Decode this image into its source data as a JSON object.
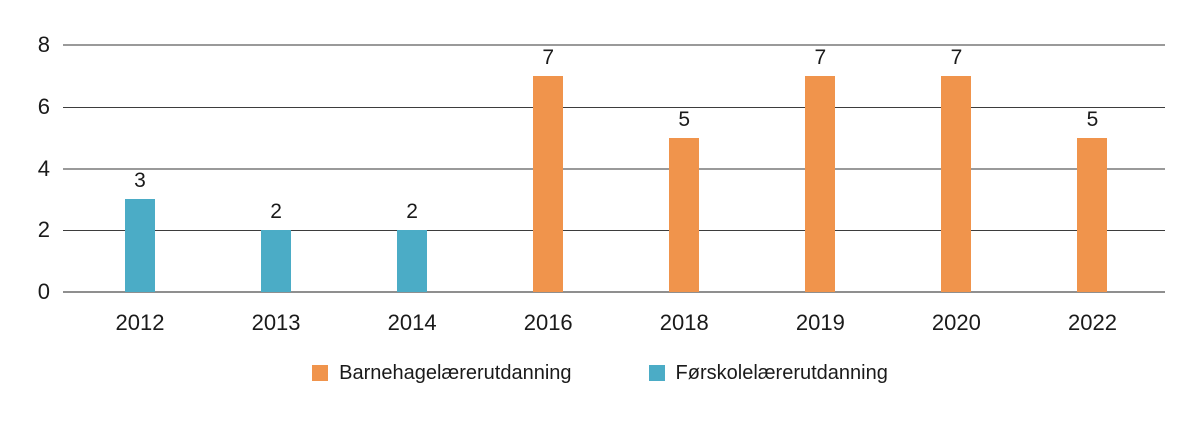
{
  "chart_data": {
    "type": "bar",
    "title": "",
    "xlabel": "",
    "ylabel": "",
    "categories": [
      "2012",
      "2013",
      "2014",
      "2016",
      "2018",
      "2019",
      "2020",
      "2022"
    ],
    "series": [
      {
        "name": "Barnehagelærerutdanning",
        "color": "#F0944C",
        "values": [
          null,
          null,
          null,
          7,
          5,
          7,
          7,
          5
        ]
      },
      {
        "name": "Førskolelærerutdanning",
        "color": "#4BACC6",
        "values": [
          3,
          2,
          2,
          null,
          null,
          null,
          null,
          null
        ]
      }
    ],
    "value_labels": [
      3,
      2,
      2,
      7,
      5,
      7,
      7,
      5
    ],
    "ylim": [
      0,
      8
    ],
    "yticks": [
      0,
      2,
      4,
      6,
      8
    ],
    "grid": true,
    "legend_position": "bottom-center"
  },
  "legend": {
    "items": [
      {
        "label": "Barnehagelærerutdanning",
        "color": "#F0944C"
      },
      {
        "label": "Førskolelærerutdanning",
        "color": "#4BACC6"
      }
    ]
  },
  "colors": {
    "background": "#FFFFFF",
    "text": "#1A1A1A",
    "gridline_dark": "#3D3D3D",
    "gridline_light": "#9A9A9A",
    "baseline": "#8F8F8F",
    "bar_orange": "#F0944C",
    "bar_teal": "#4BACC6"
  }
}
